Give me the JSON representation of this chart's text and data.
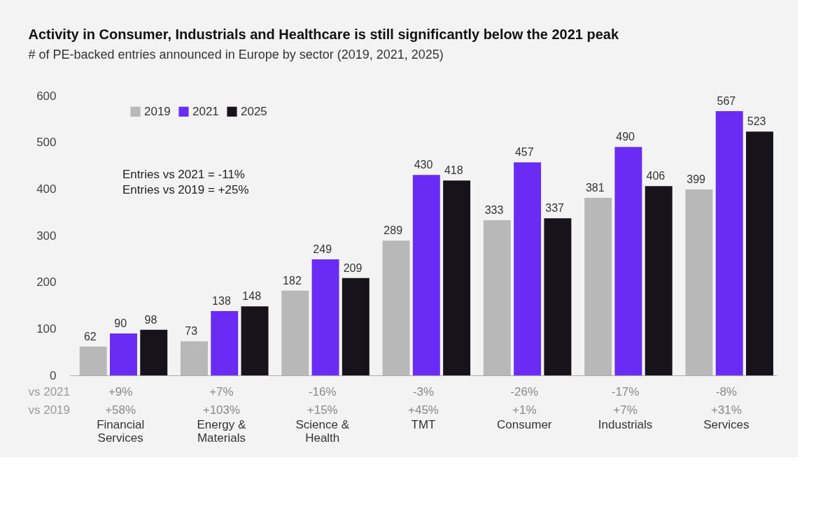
{
  "chart_data": {
    "type": "bar",
    "title": "Activity in Consumer, Industrials and Healthcare is still significantly below the 2021 peak",
    "subtitle": "# of PE-backed entries announced in Europe  by sector (2019, 2021, 2025)",
    "categories": [
      "Financial\nServices",
      "Energy &\nMaterials",
      "Science &\nHealth",
      "TMT",
      "Consumer",
      "Industrials",
      "Services"
    ],
    "series": [
      {
        "name": "2019",
        "color": "#b8b8b8",
        "values": [
          62,
          73,
          182,
          289,
          333,
          381,
          399
        ]
      },
      {
        "name": "2021",
        "color": "#6a2cf5",
        "values": [
          90,
          138,
          249,
          430,
          457,
          490,
          567
        ]
      },
      {
        "name": "2025",
        "color": "#16131a",
        "values": [
          98,
          148,
          209,
          418,
          337,
          406,
          523
        ]
      }
    ],
    "ylim": [
      0,
      600
    ],
    "yticks": [
      0,
      100,
      200,
      300,
      400,
      500,
      600
    ],
    "grid": false,
    "legend": "top left",
    "data_labels": true,
    "annotations": [
      "Entries vs 2021 =  -11%",
      "Entries vs 2019 = +25%",
      "vs 2021",
      "vs 2019",
      "+9%",
      "+58%",
      "+7%",
      "+103%",
      "-16%",
      "+15%",
      "-3%",
      "+45%",
      "-26%",
      "+1%",
      "-17%",
      "+7%",
      "-8%",
      "+31%"
    ]
  }
}
